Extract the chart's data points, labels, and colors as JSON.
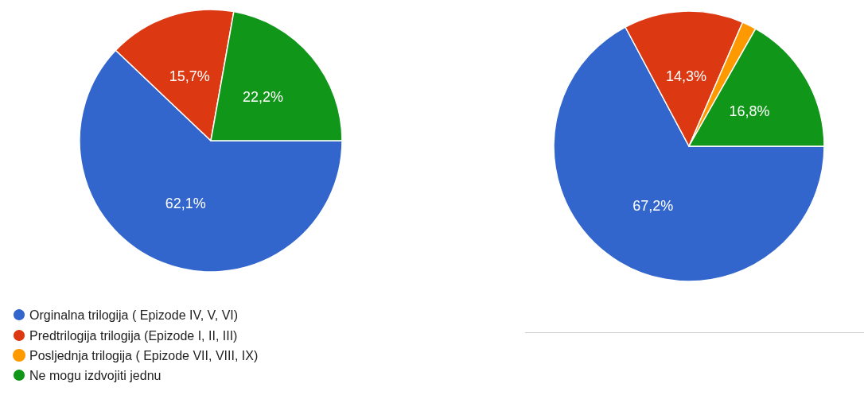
{
  "chart_data": [
    {
      "type": "pie",
      "categories": [
        "Orginalna trilogija ( Epizode IV, V, VI)",
        "Predtrilogija trilogija (Epizode I, II, III)",
        "Posljednja trilogija ( Epizode VII, VIII, IX)",
        "Ne mogu izdvojiti jednu"
      ],
      "values": [
        62.1,
        15.7,
        0,
        22.2
      ],
      "colors": [
        "#3366cc",
        "#dc3912",
        "#ff9900",
        "#109618"
      ],
      "value_labels": [
        "62,1%",
        "15,7%",
        null,
        "22,2%"
      ],
      "legend": "bottom left"
    },
    {
      "type": "pie",
      "categories": [
        null,
        null,
        null,
        null
      ],
      "values": [
        67.2,
        14.3,
        1.7,
        16.8
      ],
      "colors": [
        "#3366cc",
        "#dc3912",
        "#ff9900",
        "#109618"
      ],
      "value_labels": [
        "67,2%",
        "14,3%",
        null,
        "16,8%"
      ]
    }
  ]
}
